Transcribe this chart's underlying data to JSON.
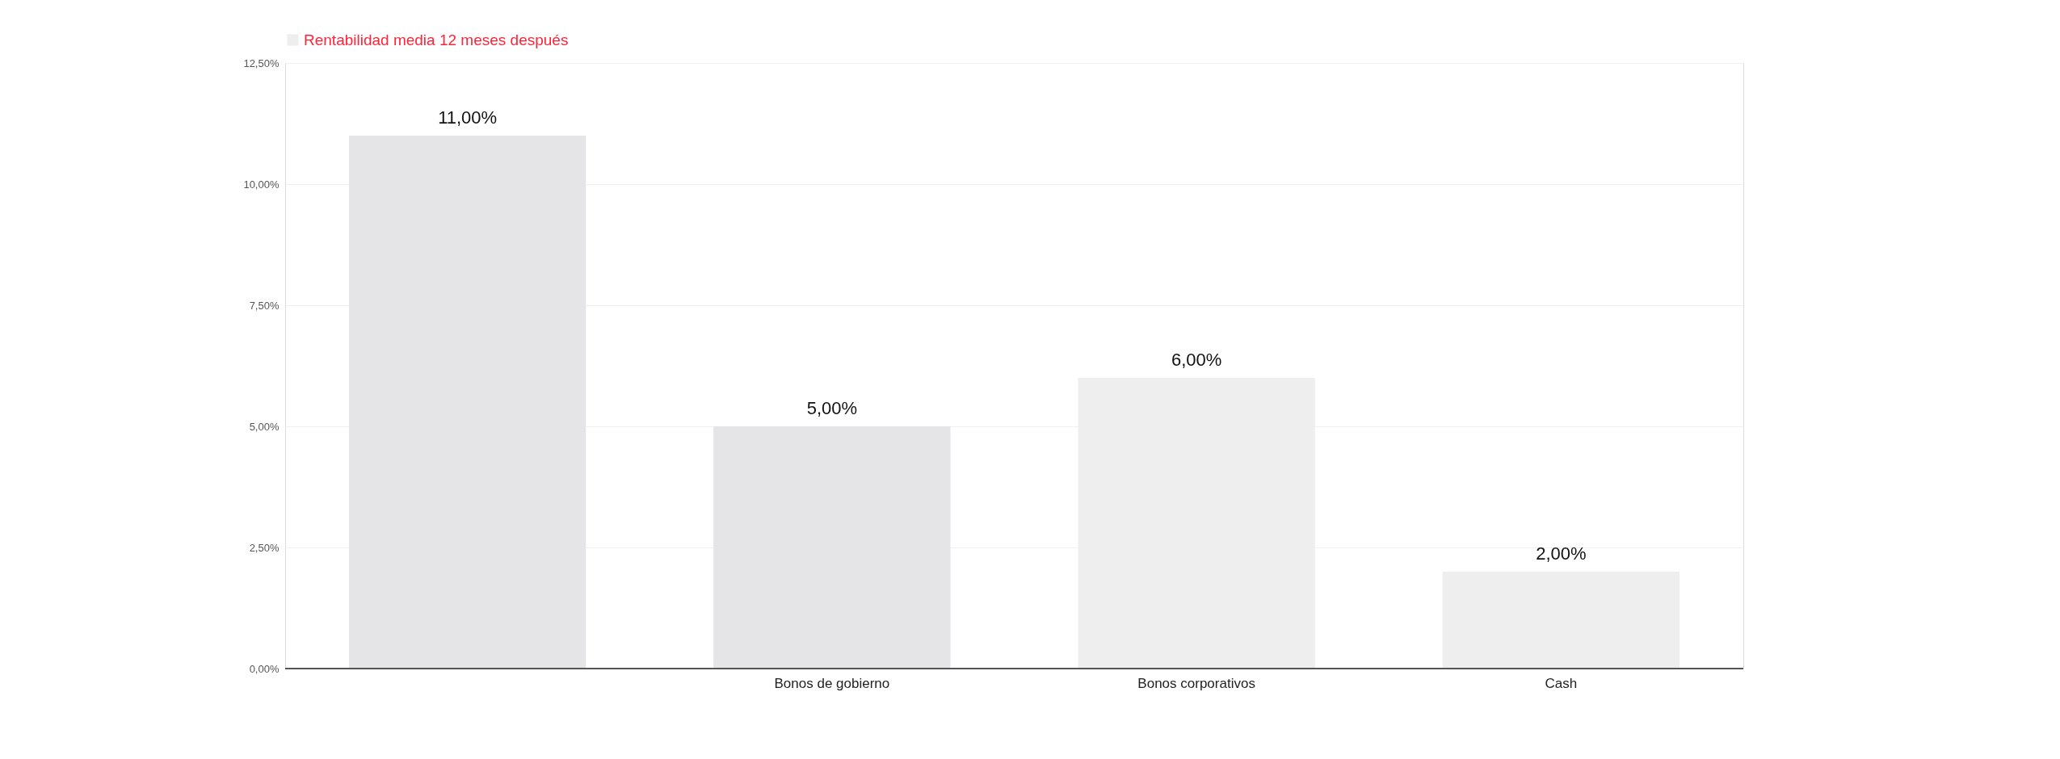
{
  "chart_data": {
    "type": "bar",
    "categories": [
      null,
      "Bonos de gobierno",
      "Bonos corporativos",
      "Cash"
    ],
    "series": [
      {
        "name": "Rentabilidad media 12 meses después",
        "color": "#eeeeee",
        "colors": [
          "#e5e5e7",
          "#e5e5e7",
          "#eeeeee",
          "#eeeeee"
        ],
        "values": [
          11,
          5,
          6,
          2
        ],
        "value_labels": [
          "11,00%",
          "5,00%",
          "6,00%",
          "2,00%"
        ]
      }
    ],
    "ylim": [
      0,
      12.5
    ],
    "yticks": [
      {
        "value": 0,
        "label": "0,00%"
      },
      {
        "value": 2.5,
        "label": "2,50%"
      },
      {
        "value": 5,
        "label": "5,00%"
      },
      {
        "value": 7.5,
        "label": "7,50%"
      },
      {
        "value": 10,
        "label": "10,00%"
      },
      {
        "value": 12.5,
        "label": "12,50%"
      }
    ],
    "grid": "y",
    "legend": "top"
  }
}
